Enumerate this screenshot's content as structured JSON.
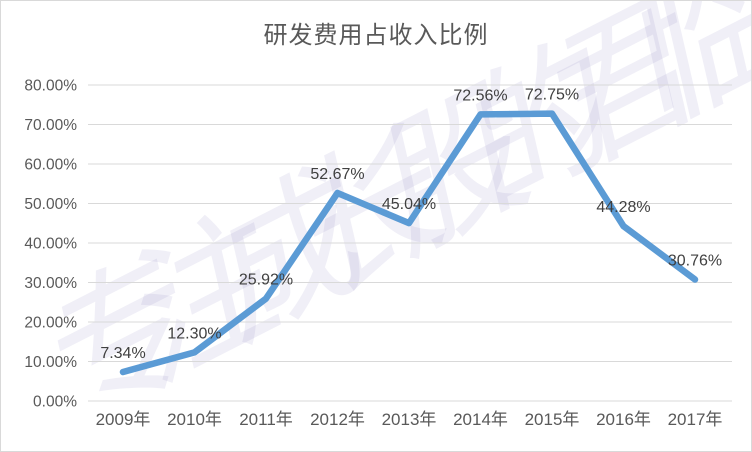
{
  "title": "研发费用占收入比例",
  "watermark_text": "专注成长股的君临",
  "colors": {
    "line": "#5B9BD5",
    "grid": "#D9D9D9",
    "axis_text": "#595959",
    "data_label_text": "#404040",
    "title_text": "#595959",
    "border": "#D9D9D9",
    "watermark": "#6D5EB5",
    "background": "#FFFFFF"
  },
  "chart_data": {
    "type": "line",
    "title": "研发费用占收入比例",
    "categories": [
      "2009年",
      "2010年",
      "2011年",
      "2012年",
      "2013年",
      "2014年",
      "2015年",
      "2016年",
      "2017年"
    ],
    "values": [
      7.34,
      12.3,
      25.92,
      52.67,
      45.04,
      72.56,
      72.75,
      44.28,
      30.76
    ],
    "value_labels": [
      "7.34%",
      "12.30%",
      "25.92%",
      "52.67%",
      "45.04%",
      "72.56%",
      "72.75%",
      "44.28%",
      "30.76%"
    ],
    "xlabel": "",
    "ylabel": "",
    "ylim": [
      0,
      80
    ],
    "ytick_step": 10,
    "ytick_labels": [
      "0.00%",
      "10.00%",
      "20.00%",
      "30.00%",
      "40.00%",
      "50.00%",
      "60.00%",
      "70.00%",
      "80.00%"
    ],
    "grid": true,
    "gridlines": "horizontal",
    "legend": "none",
    "data_labels": "above-points",
    "series_name": "研发费用占收入比例"
  }
}
